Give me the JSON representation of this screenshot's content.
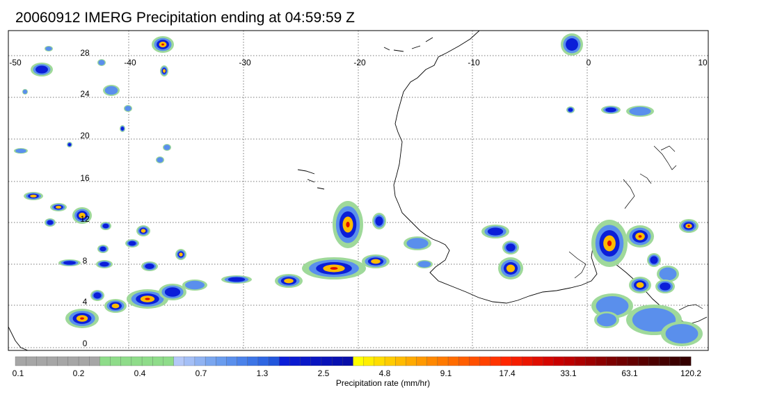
{
  "title": "20060912 IMERG Precipitation ending at 04:59:59 Z",
  "map": {
    "lon_ticks": [
      "-50",
      "-40",
      "-30",
      "-20",
      "-10",
      "0",
      "10"
    ],
    "lat_ticks": [
      "28",
      "24",
      "20",
      "16",
      "12",
      "8",
      "4",
      "0"
    ]
  },
  "colorbar": {
    "label": "Precipitation rate (mm/hr)",
    "tick_labels": [
      "0.1",
      "0.2",
      "0.4",
      "0.7",
      "1.3",
      "2.5",
      "4.8",
      "9.1",
      "17.4",
      "33.1",
      "63.1",
      "120.2"
    ],
    "colors": [
      "#a6a6a6",
      "#a6a6a6",
      "#a6a6a6",
      "#a6a6a6",
      "#a6a6a6",
      "#a6a6a6",
      "#a6a6a6",
      "#a6a6a6",
      "#8fdc8a",
      "#8fdc8a",
      "#8fdc8a",
      "#8fdc8a",
      "#8fdc8a",
      "#8fdc8a",
      "#8fdc8a",
      "#b4c8f8",
      "#a4bff6",
      "#90b3f2",
      "#7aa6ef",
      "#6a9cee",
      "#5a8fec",
      "#4b82ea",
      "#3d75e6",
      "#2f66e2",
      "#2256dc",
      "#0b1ed8",
      "#0a1ad0",
      "#0a18c8",
      "#0915c0",
      "#0912b8",
      "#0810b0",
      "#080ea8",
      "#ffff00",
      "#ffee00",
      "#ffdd00",
      "#ffcc00",
      "#ffbb00",
      "#ffaa00",
      "#ff9900",
      "#ff8800",
      "#ff7a00",
      "#ff6c00",
      "#ff5e00",
      "#ff5000",
      "#ff4200",
      "#ff3400",
      "#ff2600",
      "#f51e00",
      "#ea1600",
      "#df0e00",
      "#d40600",
      "#c80000",
      "#bc0000",
      "#ac0000",
      "#9c0000",
      "#8c0000",
      "#7c0000",
      "#700000",
      "#640000",
      "#580000",
      "#4c0000",
      "#440000",
      "#3c0000",
      "#340000"
    ]
  }
}
